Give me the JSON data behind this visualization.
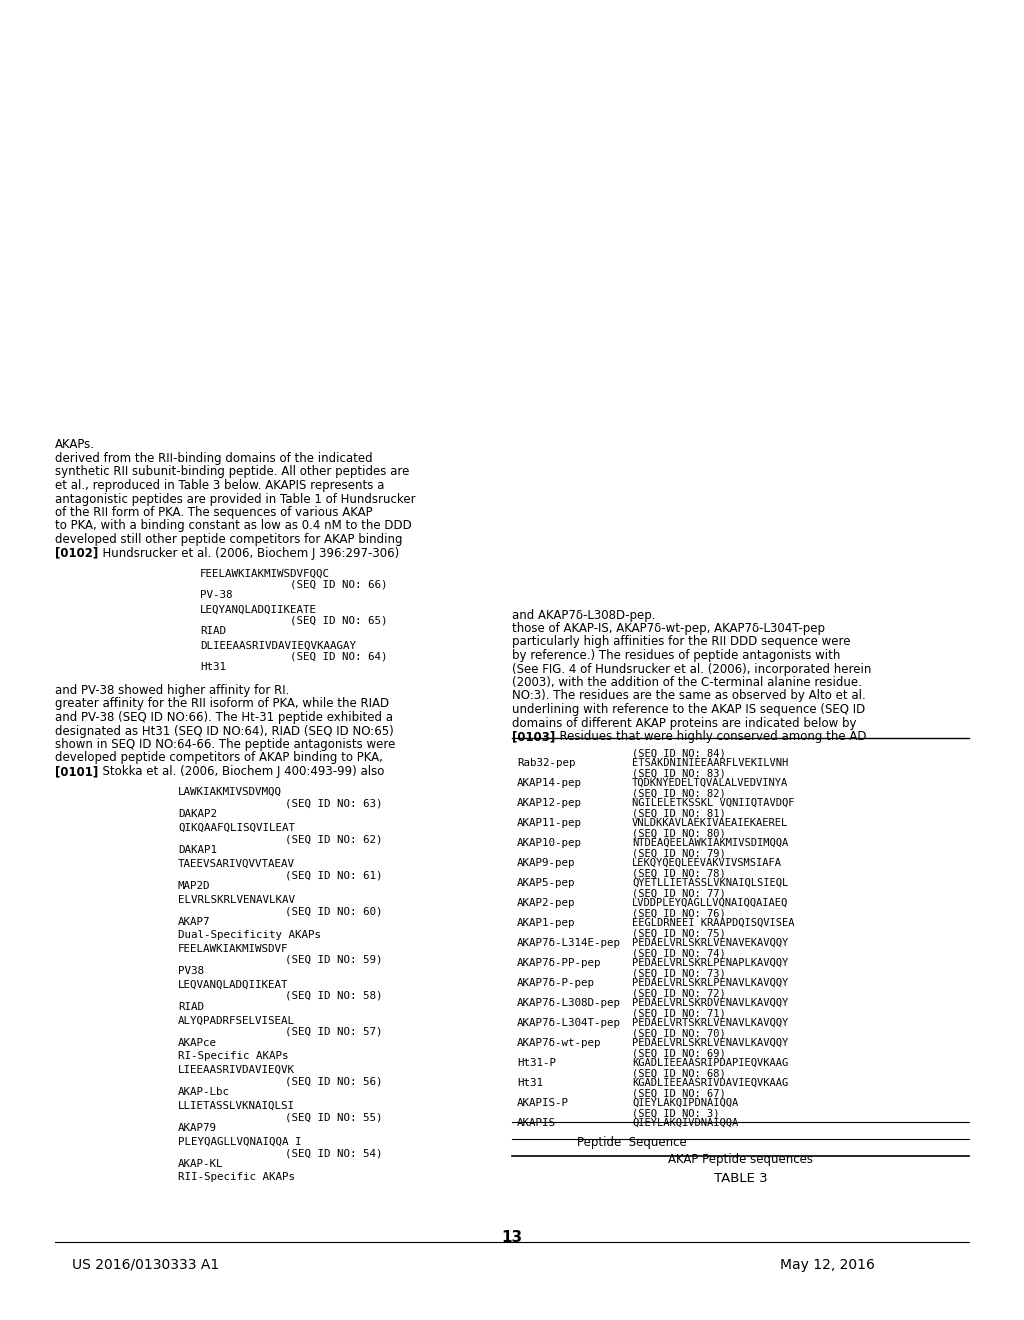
{
  "page_number": "13",
  "patent_number": "US 2016/0130333 A1",
  "patent_date": "May 12, 2016",
  "background_color": "#ffffff",
  "text_color": "#000000",
  "left_column_sequences": [
    {
      "type": "header",
      "text": "RII-Specific AKAPs"
    },
    {
      "type": "name",
      "text": "AKAP-KL"
    },
    {
      "type": "seq_id",
      "text": "(SEQ ID NO: 54)"
    },
    {
      "type": "sequence",
      "text": "PLEYQAGLLVQNAIQQA I"
    },
    {
      "type": "name",
      "text": "AKAP79"
    },
    {
      "type": "seq_id",
      "text": "(SEQ ID NO: 55)"
    },
    {
      "type": "sequence",
      "text": "LLIETASSLVKNAIQLSI"
    },
    {
      "type": "name",
      "text": "AKAP-Lbc"
    },
    {
      "type": "seq_id",
      "text": "(SEQ ID NO: 56)"
    },
    {
      "type": "sequence",
      "text": "LIEEAASRIVDAVIEQVK"
    },
    {
      "type": "header",
      "text": "RI-Specific AKAPs"
    },
    {
      "type": "name",
      "text": "AKAPce"
    },
    {
      "type": "seq_id",
      "text": "(SEQ ID NO: 57)"
    },
    {
      "type": "sequence",
      "text": "ALYQPADRFSELVISEAL"
    },
    {
      "type": "name",
      "text": "RIAD"
    },
    {
      "type": "seq_id",
      "text": "(SEQ ID NO: 58)"
    },
    {
      "type": "sequence",
      "text": "LEQVANQLADQIIKEAT"
    },
    {
      "type": "name",
      "text": "PV38"
    },
    {
      "type": "seq_id",
      "text": "(SEQ ID NO: 59)"
    },
    {
      "type": "sequence",
      "text": "FEELAWKIAKMIWSDVF"
    },
    {
      "type": "header",
      "text": "Dual-Specificity AKAPs"
    },
    {
      "type": "name",
      "text": "AKAP7"
    },
    {
      "type": "seq_id",
      "text": "(SEQ ID NO: 60)"
    },
    {
      "type": "sequence",
      "text": "ELVRLSKRLVENAVLKAV"
    },
    {
      "type": "name",
      "text": "MAP2D"
    },
    {
      "type": "seq_id",
      "text": "(SEQ ID NO: 61)"
    },
    {
      "type": "sequence",
      "text": "TAEEVSARIVQVVTAEAV"
    },
    {
      "type": "name",
      "text": "DAKAP1"
    },
    {
      "type": "seq_id",
      "text": "(SEQ ID NO: 62)"
    },
    {
      "type": "sequence",
      "text": "QIKQAAFQLISQVILEAT"
    },
    {
      "type": "name",
      "text": "DAKAP2"
    },
    {
      "type": "seq_id",
      "text": "(SEQ ID NO: 63)"
    },
    {
      "type": "sequence",
      "text": "LAWKIAKMIVSDVMQQ"
    }
  ],
  "paragraph_0101": "[0101]  Stokka et al. (2006, Biochem J 400:493-99) also developed peptide competitors of AKAP binding to PKA, shown in SEQ ID NO:64-66. The peptide antagonists were designated as Ht31 (SEQ ID NO:64), RIAD (SEQ ID NO:65) and PV-38 (SEQ ID NO:66). The Ht-31 peptide exhibited a greater affinity for the RII isoform of PKA, while the RIAD and PV-38 showed higher affinity for RI.",
  "middle_sequences": [
    {
      "type": "name",
      "text": "Ht31"
    },
    {
      "type": "seq_id",
      "text": "(SEQ ID NO: 64)"
    },
    {
      "type": "sequence",
      "text": "DLIEEAASRIVDAVIEQVKAAGAY"
    },
    {
      "type": "name",
      "text": "RIAD"
    },
    {
      "type": "seq_id",
      "text": "(SEQ ID NO: 65)"
    },
    {
      "type": "sequence",
      "text": "LEQYANQLADQIIKEATE"
    },
    {
      "type": "name",
      "text": "PV-38"
    },
    {
      "type": "seq_id",
      "text": "(SEQ ID NO: 66)"
    },
    {
      "type": "sequence",
      "text": "FEELAWKIAKMIWSDVFQQC"
    }
  ],
  "paragraph_0102": "[0102]  Hundsrucker et al. (2006, Biochem J 396:297-306) developed still other peptide competitors for AKAP binding to PKA, with a binding constant as low as 0.4 nM to the DDD of the RII form of PKA. The sequences of various AKAP antagonistic peptides are provided in Table 1 of Hundsrucker et al., reproduced in Table 3 below. AKAPIS represents a synthetic RII subunit-binding peptide. All other peptides are derived from the RII-binding domains of the indicated AKAPs.",
  "paragraph_0102_italic": "Biochem J",
  "table3_title": "TABLE 3",
  "table3_header1": "AKAP Peptide sequences",
  "table3_header2": "Peptide  Sequence",
  "table3_rows": [
    {
      "name": "AKAPIS",
      "seq": "QIEYLAKQIVDNAIQQA",
      "seq_id": "(SEQ ID NO: 3)"
    },
    {
      "name": "AKAPIS-P",
      "seq": "QIEYLAKQIPDNAIQQA",
      "seq_id": "(SEQ ID NO: 67)"
    },
    {
      "name": "Ht31",
      "seq": "KGADLIEEAASRIVDAVIEQVKAAG",
      "seq_id": "(SEQ ID NO: 68)"
    },
    {
      "name": "Ht31-P",
      "seq": "KGADLIEEAASRIPDAPIEQVKAAG",
      "seq_id": "(SEQ ID NO: 69)"
    },
    {
      "name": "AKAP7δ-wt-pep",
      "seq": "PEDAELVRLSKRLVENAVLKAVQQY",
      "seq_id": "(SEQ ID NO: 70)"
    },
    {
      "name": "AKAP7δ-L304T-pep",
      "seq": "PEDAELVRTSKRLVENAVLKAVQQY",
      "seq_id": "(SEQ ID NO: 71)"
    },
    {
      "name": "AKAP7δ-L308D-pep",
      "seq": "PEDAELVRLSKRDVENAVLKAVQQY",
      "seq_id": "(SEQ ID NO: 72)"
    },
    {
      "name": "AKAP7δ-P-pep",
      "seq": "PEDAELVRLSKRLPENAVLKAVQQY",
      "seq_id": "(SEQ ID NO: 73)"
    },
    {
      "name": "AKAP7δ-PP-pep",
      "seq": "PEDAELVRLSKRLPENAPLKAVQQY",
      "seq_id": "(SEQ ID NO: 74)"
    },
    {
      "name": "AKAP7δ-L314E-pep",
      "seq": "PEDAELVRLSKRLVENAVEKAVQQY",
      "seq_id": "(SEQ ID NO: 75)"
    },
    {
      "name": "AKAP1-pep",
      "seq": "EEGLDRNEEI KRAAPDQISQVISEA",
      "seq_id": "(SEQ ID NO: 76)"
    },
    {
      "name": "AKAP2-pep",
      "seq": "LVDDPLEYQAGLLVQNAIQQAIAEQ",
      "seq_id": "(SEQ ID NO: 77)"
    },
    {
      "name": "AKAP5-pep",
      "seq": "QYETLLIETASSLVKNAIQLSIEQL",
      "seq_id": "(SEQ ID NO: 78)"
    },
    {
      "name": "AKAP9-pep",
      "seq": "LEKQYQEQLEEVAKVIVSMSIAFA",
      "seq_id": "(SEQ ID NO: 79)"
    },
    {
      "name": "AKAP10-pep",
      "seq": "NTDEAQEELAWKIAKMIVSDIMQQA",
      "seq_id": "(SEQ ID NO: 80)"
    },
    {
      "name": "AKAP11-pep",
      "seq": "VNLDKKAVLAEKIVAEAIEKAEREL",
      "seq_id": "(SEQ ID NO: 81)"
    },
    {
      "name": "AKAP12-pep",
      "seq": "NGILELETKSSKL VQNIIQTAVDQF",
      "seq_id": "(SEQ ID NO: 82)"
    },
    {
      "name": "AKAP14-pep",
      "seq": "TQDKNYEDELTQVALALVEDVINYA",
      "seq_id": "(SEQ ID NO: 83)"
    },
    {
      "name": "Rab32-pep",
      "seq": "ETSAKDNINIEEAARFLVEKILVNH",
      "seq_id": "(SEQ ID NO: 84)"
    }
  ],
  "paragraph_0103": "[0103]  Residues that were highly conserved among the AD domains of different AKAP proteins are indicated below by underlining with reference to the AKAP IS sequence (SEQ ID NO:3). The residues are the same as observed by Alto et al. (2003), with the addition of the C-terminal alanine residue. (See FIG. 4 of Hundsrucker et al. (2006), incorporated herein by reference.) The residues of peptide antagonists with particularly high affinities for the RII DDD sequence were those of AKAP-IS, AKAP7δ-wt-pep, AKAP7δ-L304T-pep and AKAP7δ-L308D-pep."
}
